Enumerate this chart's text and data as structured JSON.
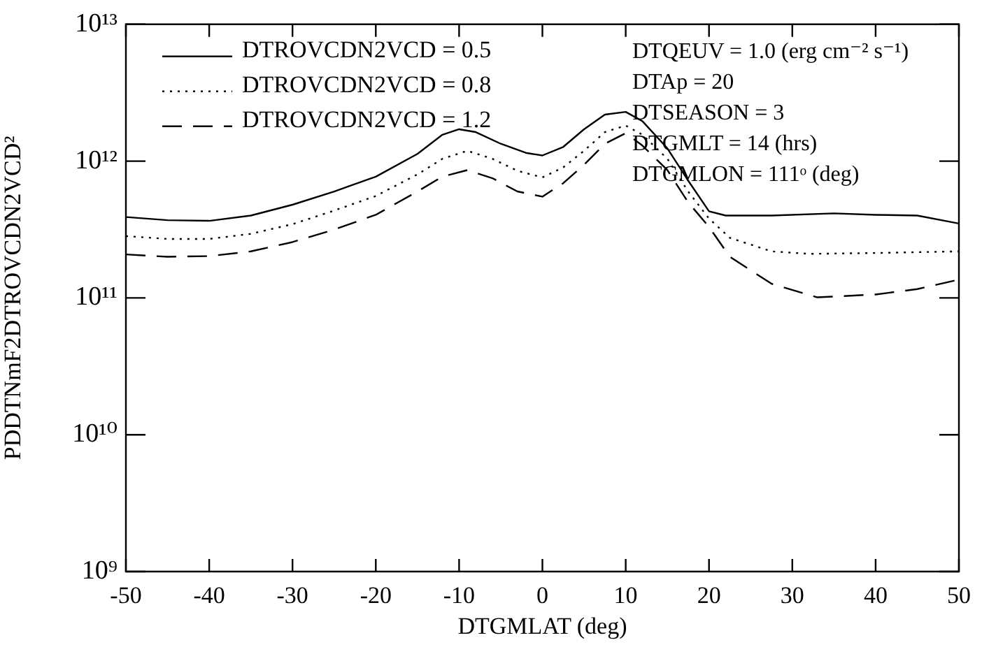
{
  "chart_data": {
    "type": "line",
    "xlabel": "DTGMLAT (deg)",
    "ylabel": "PDDTNmF2DTROVCDN2VCD²",
    "log": "y",
    "grid": false,
    "legend": "top left",
    "marker": "none",
    "xlim": [
      -50,
      50
    ],
    "xticks": [
      -50,
      -40,
      -30,
      -20,
      -10,
      0,
      10,
      20,
      30,
      40,
      50
    ],
    "ylim": [
      1000000000,
      10000000000000
    ],
    "yticks": [
      {
        "value": 1000000000,
        "label": "10⁹"
      },
      {
        "value": 10000000000,
        "label": "10¹⁰"
      },
      {
        "value": 100000000000,
        "label": "10¹¹"
      },
      {
        "value": 1000000000000,
        "label": "10¹²"
      },
      {
        "value": 10000000000000,
        "label": "10¹³"
      }
    ],
    "annotations": [
      "DTQEUV = 1.0 (erg cm⁻² s⁻¹)",
      "DTAp = 20",
      "DTSEASON = 3",
      "DTGMLT = 14 (hrs)",
      "DTGMLON = 111ᵒ (deg)"
    ],
    "series": [
      {
        "name": "DTROVCDN2VCD = 0.5",
        "color": "#000000",
        "line_style": "solid",
        "x": [
          -50,
          -45,
          -40,
          -35,
          -30,
          -25,
          -20,
          -15,
          -12,
          -10,
          -8,
          -5,
          -2,
          0,
          2.5,
          5,
          7.5,
          10,
          12,
          15,
          17.5,
          20,
          22,
          27.5,
          35,
          40,
          45,
          50
        ],
        "values": [
          390000000000,
          370000000000,
          366000000000,
          400000000000,
          480000000000,
          600000000000,
          770000000000,
          1130000000000,
          1560000000000,
          1710000000000,
          1630000000000,
          1340000000000,
          1150000000000,
          1100000000000,
          1270000000000,
          1710000000000,
          2190000000000,
          2290000000000,
          1960000000000,
          1240000000000,
          720000000000,
          430000000000,
          400000000000,
          400000000000,
          415000000000,
          405000000000,
          400000000000,
          350000000000
        ]
      },
      {
        "name": "DTROVCDN2VCD = 0.8",
        "color": "#000000",
        "line_style": "dotted",
        "x": [
          -50,
          -45,
          -40,
          -35,
          -30,
          -25,
          -20,
          -15,
          -12,
          -9,
          -6,
          -3,
          0,
          2.5,
          5,
          7.5,
          10,
          12,
          15,
          17.5,
          20,
          22.5,
          27.5,
          32,
          40,
          50
        ],
        "values": [
          283000000000,
          270000000000,
          270000000000,
          294000000000,
          346000000000,
          435000000000,
          556000000000,
          800000000000,
          1040000000000,
          1190000000000,
          1040000000000,
          850000000000,
          760000000000,
          900000000000,
          1190000000000,
          1630000000000,
          1820000000000,
          1560000000000,
          1040000000000,
          600000000000,
          380000000000,
          275000000000,
          219000000000,
          210000000000,
          213000000000,
          219000000000
        ]
      },
      {
        "name": "DTROVCDN2VCD = 1.2",
        "color": "#000000",
        "line_style": "dashed",
        "x": [
          -50,
          -45,
          -40,
          -35,
          -30,
          -25,
          -20,
          -15,
          -12,
          -9,
          -6,
          -3,
          0,
          2.5,
          5,
          7.5,
          10,
          12,
          15,
          17.5,
          20,
          22.5,
          27.5,
          33,
          40,
          45,
          50
        ],
        "values": [
          208000000000,
          200000000000,
          202000000000,
          219000000000,
          256000000000,
          316000000000,
          405000000000,
          600000000000,
          770000000000,
          860000000000,
          750000000000,
          600000000000,
          550000000000,
          690000000000,
          940000000000,
          1340000000000,
          1600000000000,
          1300000000000,
          860000000000,
          500000000000,
          330000000000,
          200000000000,
          127000000000,
          101000000000,
          106000000000,
          116000000000,
          136000000000
        ]
      }
    ]
  }
}
